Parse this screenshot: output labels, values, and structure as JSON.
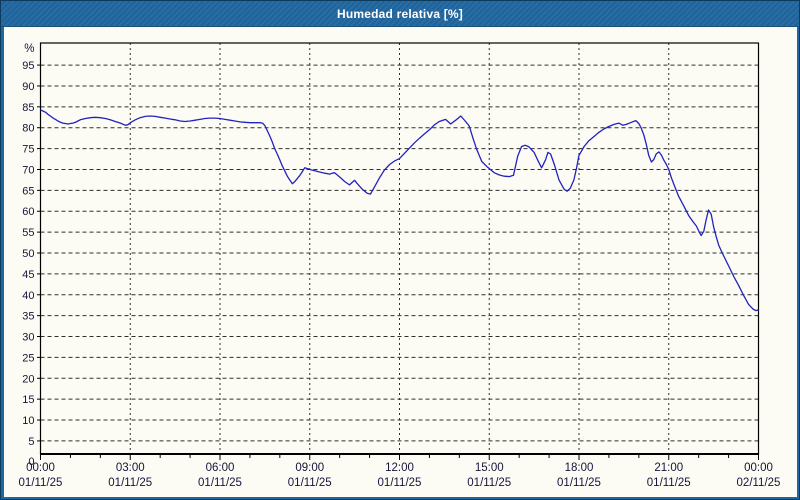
{
  "window": {
    "title": "Humedad relativa [%]"
  },
  "colors": {
    "titlebar": "#2066A0",
    "titlebar_edge": "#0D3B5E",
    "panel_bg": "#FCFCF5",
    "frame": "#000000",
    "grid": "#2E2E2E",
    "line": "#2222BE",
    "label": "#14143C"
  },
  "chart_data": {
    "type": "line",
    "title": "Humedad relativa [%]",
    "xlabel": "",
    "ylabel": "%",
    "ylim": [
      0,
      100
    ],
    "xlim_hours": [
      0,
      24
    ],
    "grid": true,
    "legend_position": "none",
    "y_origin_label": "0",
    "y_ticks": [
      95,
      90,
      85,
      80,
      75,
      70,
      65,
      60,
      55,
      50,
      45,
      40,
      35,
      30,
      25,
      20,
      15,
      10,
      5
    ],
    "x_ticks": [
      {
        "time": "00:00",
        "date": "01/11/25",
        "hour": 0,
        "gridline": false
      },
      {
        "time": "03:00",
        "date": "01/11/25",
        "hour": 3,
        "gridline": true
      },
      {
        "time": "06:00",
        "date": "01/11/25",
        "hour": 6,
        "gridline": true
      },
      {
        "time": "09:00",
        "date": "01/11/25",
        "hour": 9,
        "gridline": true
      },
      {
        "time": "12:00",
        "date": "01/11/25",
        "hour": 12,
        "gridline": true
      },
      {
        "time": "15:00",
        "date": "01/11/25",
        "hour": 15,
        "gridline": true
      },
      {
        "time": "18:00",
        "date": "01/11/25",
        "hour": 18,
        "gridline": true
      },
      {
        "time": "21:00",
        "date": "01/11/25",
        "hour": 21,
        "gridline": true
      },
      {
        "time": "00:00",
        "date": "02/11/25",
        "hour": 24,
        "gridline": false
      }
    ],
    "x_minor_tick_every_hours": 1,
    "series": [
      {
        "name": "Humedad relativa",
        "units": "%",
        "points": [
          [
            0.0,
            84.3
          ],
          [
            0.08,
            84.0
          ],
          [
            0.17,
            83.7
          ],
          [
            0.25,
            83.2
          ],
          [
            0.33,
            82.8
          ],
          [
            0.42,
            82.3
          ],
          [
            0.5,
            82.0
          ],
          [
            0.58,
            81.6
          ],
          [
            0.67,
            81.3
          ],
          [
            0.75,
            81.1
          ],
          [
            0.83,
            81.0
          ],
          [
            0.92,
            80.9
          ],
          [
            1.0,
            81.0
          ],
          [
            1.08,
            81.1
          ],
          [
            1.17,
            81.3
          ],
          [
            1.25,
            81.6
          ],
          [
            1.33,
            81.9
          ],
          [
            1.5,
            82.2
          ],
          [
            1.67,
            82.4
          ],
          [
            1.83,
            82.5
          ],
          [
            2.0,
            82.4
          ],
          [
            2.17,
            82.2
          ],
          [
            2.33,
            81.9
          ],
          [
            2.5,
            81.5
          ],
          [
            2.67,
            81.1
          ],
          [
            2.83,
            80.6
          ],
          [
            2.92,
            80.7
          ],
          [
            3.0,
            81.2
          ],
          [
            3.17,
            81.9
          ],
          [
            3.33,
            82.4
          ],
          [
            3.5,
            82.7
          ],
          [
            3.67,
            82.8
          ],
          [
            3.83,
            82.7
          ],
          [
            4.0,
            82.5
          ],
          [
            4.17,
            82.3
          ],
          [
            4.33,
            82.1
          ],
          [
            4.5,
            81.9
          ],
          [
            4.67,
            81.6
          ],
          [
            4.83,
            81.5
          ],
          [
            5.0,
            81.6
          ],
          [
            5.17,
            81.8
          ],
          [
            5.33,
            82.0
          ],
          [
            5.5,
            82.2
          ],
          [
            5.67,
            82.3
          ],
          [
            5.83,
            82.3
          ],
          [
            6.0,
            82.2
          ],
          [
            6.17,
            82.0
          ],
          [
            6.33,
            81.8
          ],
          [
            6.5,
            81.6
          ],
          [
            6.67,
            81.4
          ],
          [
            6.83,
            81.3
          ],
          [
            7.0,
            81.2
          ],
          [
            7.17,
            81.2
          ],
          [
            7.33,
            81.2
          ],
          [
            7.42,
            81.1
          ],
          [
            7.5,
            80.5
          ],
          [
            7.58,
            79.3
          ],
          [
            7.67,
            77.9
          ],
          [
            7.75,
            76.5
          ],
          [
            7.83,
            75.0
          ],
          [
            7.92,
            73.6
          ],
          [
            8.0,
            72.3
          ],
          [
            8.08,
            70.9
          ],
          [
            8.17,
            69.6
          ],
          [
            8.25,
            68.4
          ],
          [
            8.33,
            67.5
          ],
          [
            8.42,
            66.6
          ],
          [
            8.5,
            67.1
          ],
          [
            8.58,
            67.8
          ],
          [
            8.67,
            68.6
          ],
          [
            8.75,
            69.5
          ],
          [
            8.83,
            70.4
          ],
          [
            8.92,
            70.2
          ],
          [
            9.0,
            70.0
          ],
          [
            9.17,
            69.7
          ],
          [
            9.33,
            69.4
          ],
          [
            9.5,
            69.1
          ],
          [
            9.67,
            68.9
          ],
          [
            9.75,
            69.1
          ],
          [
            9.83,
            69.2
          ],
          [
            10.0,
            68.2
          ],
          [
            10.17,
            67.1
          ],
          [
            10.33,
            66.3
          ],
          [
            10.42,
            66.9
          ],
          [
            10.5,
            67.4
          ],
          [
            10.58,
            66.7
          ],
          [
            10.75,
            65.3
          ],
          [
            10.92,
            64.3
          ],
          [
            11.03,
            64.1
          ],
          [
            11.17,
            65.9
          ],
          [
            11.33,
            68.0
          ],
          [
            11.5,
            69.9
          ],
          [
            11.67,
            71.2
          ],
          [
            11.83,
            72.0
          ],
          [
            12.0,
            72.6
          ],
          [
            12.17,
            73.9
          ],
          [
            12.33,
            75.1
          ],
          [
            12.5,
            76.4
          ],
          [
            12.67,
            77.5
          ],
          [
            12.83,
            78.5
          ],
          [
            13.0,
            79.5
          ],
          [
            13.17,
            80.7
          ],
          [
            13.33,
            81.5
          ],
          [
            13.54,
            82.0
          ],
          [
            13.71,
            80.9
          ],
          [
            13.88,
            81.8
          ],
          [
            14.05,
            82.8
          ],
          [
            14.21,
            81.5
          ],
          [
            14.33,
            80.4
          ],
          [
            14.46,
            77.4
          ],
          [
            14.58,
            74.8
          ],
          [
            14.75,
            71.9
          ],
          [
            14.92,
            70.7
          ],
          [
            15.0,
            70.2
          ],
          [
            15.17,
            69.2
          ],
          [
            15.33,
            68.7
          ],
          [
            15.5,
            68.4
          ],
          [
            15.67,
            68.3
          ],
          [
            15.81,
            68.6
          ],
          [
            15.95,
            73.2
          ],
          [
            16.08,
            75.5
          ],
          [
            16.21,
            75.8
          ],
          [
            16.33,
            75.4
          ],
          [
            16.5,
            74.1
          ],
          [
            16.63,
            72.1
          ],
          [
            16.75,
            70.4
          ],
          [
            16.88,
            72.3
          ],
          [
            16.96,
            74.1
          ],
          [
            17.05,
            73.7
          ],
          [
            17.17,
            71.3
          ],
          [
            17.33,
            67.5
          ],
          [
            17.5,
            65.3
          ],
          [
            17.6,
            64.8
          ],
          [
            17.71,
            65.5
          ],
          [
            17.83,
            67.5
          ],
          [
            17.92,
            70.4
          ],
          [
            18.0,
            73.4
          ],
          [
            18.17,
            75.5
          ],
          [
            18.33,
            76.9
          ],
          [
            18.5,
            77.9
          ],
          [
            18.67,
            78.9
          ],
          [
            18.83,
            79.7
          ],
          [
            19.0,
            80.3
          ],
          [
            19.17,
            80.8
          ],
          [
            19.33,
            81.1
          ],
          [
            19.46,
            80.6
          ],
          [
            19.58,
            80.8
          ],
          [
            19.75,
            81.3
          ],
          [
            19.9,
            81.7
          ],
          [
            20.0,
            81.0
          ],
          [
            20.08,
            79.9
          ],
          [
            20.17,
            78.2
          ],
          [
            20.25,
            76.0
          ],
          [
            20.33,
            73.4
          ],
          [
            20.42,
            71.8
          ],
          [
            20.5,
            72.4
          ],
          [
            20.58,
            73.7
          ],
          [
            20.67,
            74.2
          ],
          [
            20.75,
            73.5
          ],
          [
            20.83,
            72.3
          ],
          [
            20.92,
            71.2
          ],
          [
            21.0,
            70.0
          ],
          [
            21.08,
            68.2
          ],
          [
            21.17,
            66.5
          ],
          [
            21.33,
            63.6
          ],
          [
            21.5,
            61.3
          ],
          [
            21.67,
            58.9
          ],
          [
            21.83,
            57.3
          ],
          [
            21.92,
            56.5
          ],
          [
            22.0,
            55.3
          ],
          [
            22.08,
            54.2
          ],
          [
            22.17,
            55.2
          ],
          [
            22.25,
            57.9
          ],
          [
            22.33,
            60.3
          ],
          [
            22.42,
            59.3
          ],
          [
            22.5,
            56.3
          ],
          [
            22.58,
            54.1
          ],
          [
            22.67,
            51.9
          ],
          [
            22.75,
            50.6
          ],
          [
            22.83,
            49.4
          ],
          [
            23.0,
            46.9
          ],
          [
            23.17,
            44.4
          ],
          [
            23.33,
            42.3
          ],
          [
            23.5,
            39.9
          ],
          [
            23.67,
            37.7
          ],
          [
            23.83,
            36.5
          ],
          [
            23.92,
            36.2
          ],
          [
            24.0,
            36.4
          ]
        ]
      }
    ]
  }
}
